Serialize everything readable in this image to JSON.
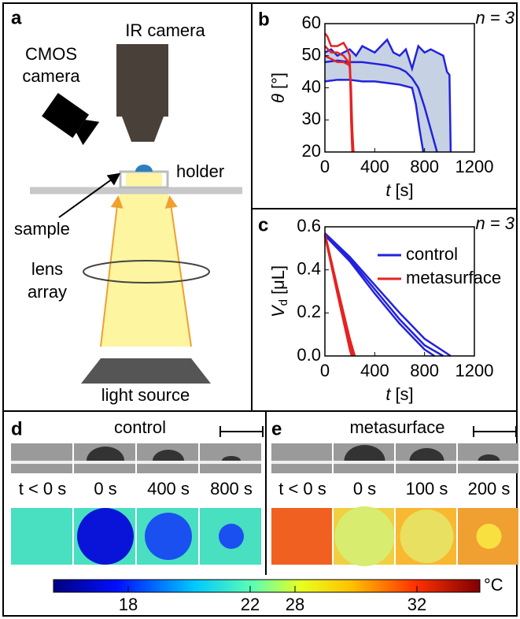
{
  "panel_a": {
    "label": "a",
    "ir_camera": "IR camera",
    "cmos_camera": [
      "CMOS",
      "camera"
    ],
    "holder": "holder",
    "sample": "sample",
    "lens_array": [
      "lens",
      "array"
    ],
    "light_source": "light source"
  },
  "chart_data": [
    {
      "type": "line",
      "label": "b",
      "annotation": "n = 3",
      "xlabel": [
        "t",
        "[s]"
      ],
      "ylabel": [
        "θ",
        "[°]"
      ],
      "xlim": [
        0,
        1200
      ],
      "xticks": [
        0,
        400,
        800,
        1200
      ],
      "ylim": [
        20,
        60
      ],
      "yticks": [
        20,
        30,
        40,
        50,
        60
      ],
      "band_color": "#c6d1e4",
      "series": [
        {
          "color": "#2222dd",
          "x": [
            0,
            50,
            100,
            150,
            200,
            250,
            300,
            350,
            400,
            450,
            500,
            550,
            600,
            650,
            700,
            750,
            800,
            850,
            900,
            950,
            980,
            1000,
            1010
          ],
          "values": [
            51,
            52,
            50,
            51,
            52,
            50,
            53,
            52,
            51,
            53,
            55,
            51,
            50,
            52,
            46,
            53,
            51,
            52,
            51,
            50,
            45,
            44,
            20
          ]
        },
        {
          "color": "#2222dd",
          "x": [
            0,
            100,
            200,
            300,
            400,
            500,
            600,
            650,
            700,
            750,
            800,
            850,
            900
          ],
          "values": [
            48,
            48.5,
            48,
            48,
            47.5,
            47,
            46,
            45,
            43,
            40,
            34,
            27,
            20
          ]
        },
        {
          "color": "#2222dd",
          "x": [
            0,
            100,
            200,
            300,
            400,
            500,
            600,
            700,
            730,
            760,
            790
          ],
          "values": [
            42,
            42.5,
            42.5,
            42,
            42,
            41.5,
            41,
            40,
            35,
            27,
            20
          ]
        },
        {
          "color": "#e52222",
          "x": [
            0,
            20,
            50,
            100,
            150,
            180,
            200,
            210,
            220
          ],
          "values": [
            57,
            56,
            53,
            53,
            54,
            52,
            50,
            30,
            20
          ]
        },
        {
          "color": "#e52222",
          "x": [
            0,
            50,
            100,
            150,
            190,
            200,
            215,
            230
          ],
          "values": [
            53,
            51,
            51,
            50,
            48,
            46,
            30,
            20
          ]
        },
        {
          "color": "#e52222",
          "x": [
            0,
            50,
            100,
            150,
            200,
            210,
            225
          ],
          "values": [
            50,
            49,
            48,
            48,
            47,
            40,
            20
          ]
        }
      ]
    },
    {
      "type": "line",
      "label": "c",
      "annotation": "n = 3",
      "xlabel": [
        "t",
        "[s]"
      ],
      "ylabel": [
        "V",
        "d",
        "[μL]"
      ],
      "legend": "upper right",
      "xlim": [
        0,
        1200
      ],
      "xticks": [
        0,
        400,
        800,
        1200
      ],
      "ylim": [
        0,
        0.6
      ],
      "yticks": [
        {
          "value": 0,
          "label": "0.0"
        },
        0.2,
        0.4,
        0.6
      ],
      "series": [
        {
          "name": "control",
          "color": "#2222dd",
          "x": [
            0,
            200,
            400,
            600,
            800,
            1010
          ],
          "values": [
            0.57,
            0.46,
            0.33,
            0.2,
            0.08,
            0
          ]
        },
        {
          "color": "#2222dd",
          "x": [
            0,
            200,
            400,
            600,
            800,
            950
          ],
          "values": [
            0.57,
            0.45,
            0.31,
            0.17,
            0.05,
            0
          ]
        },
        {
          "color": "#2222dd",
          "x": [
            0,
            200,
            400,
            600,
            800,
            880
          ],
          "values": [
            0.56,
            0.44,
            0.29,
            0.15,
            0.03,
            0
          ]
        },
        {
          "name": "metasurface",
          "color": "#e52222",
          "x": [
            0,
            100,
            200,
            240
          ],
          "values": [
            0.57,
            0.32,
            0.08,
            0
          ]
        },
        {
          "color": "#e52222",
          "x": [
            0,
            100,
            200,
            225
          ],
          "values": [
            0.56,
            0.3,
            0.05,
            0
          ]
        },
        {
          "color": "#e52222",
          "x": [
            0,
            100,
            200,
            215
          ],
          "values": [
            0.56,
            0.29,
            0.03,
            0
          ]
        }
      ]
    }
  ],
  "panel_d": {
    "label": "d",
    "title": "control",
    "times": [
      "t < 0 s",
      "0 s",
      "400 s",
      "800 s"
    ]
  },
  "panel_e": {
    "label": "e",
    "title": "metasurface",
    "times": [
      "t < 0 s",
      "0 s",
      "100 s",
      "200 s"
    ]
  },
  "colorbar": {
    "unit": "°C",
    "ticks": [
      18,
      22,
      28,
      32
    ]
  }
}
